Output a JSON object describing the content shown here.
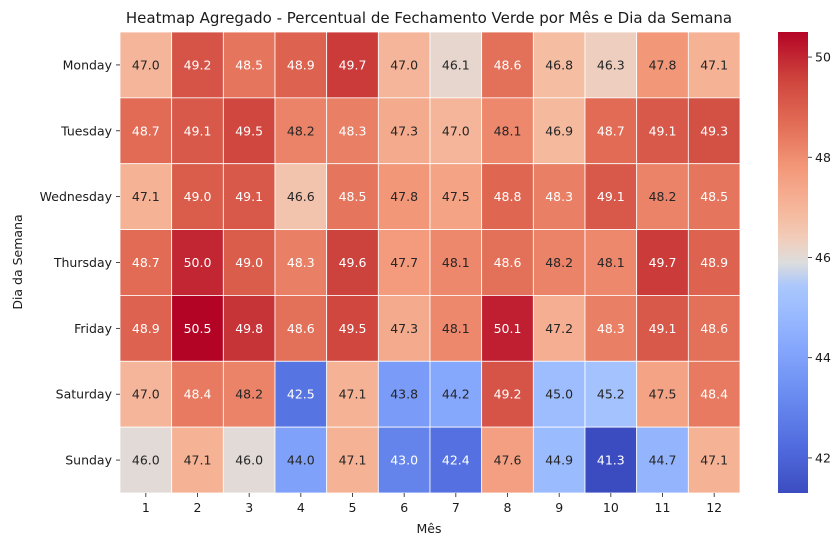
{
  "chart_data": {
    "type": "heatmap",
    "title": "Heatmap Agregado - Percentual de Fechamento Verde por Mês e Dia da Semana",
    "xlabel": "Mês",
    "ylabel": "Dia da Semana",
    "x_categories": [
      "1",
      "2",
      "3",
      "4",
      "5",
      "6",
      "7",
      "8",
      "9",
      "10",
      "11",
      "12"
    ],
    "y_categories": [
      "Monday",
      "Tuesday",
      "Wednesday",
      "Thursday",
      "Friday",
      "Saturday",
      "Sunday"
    ],
    "values": [
      [
        47.0,
        49.2,
        48.5,
        48.9,
        49.7,
        47.0,
        46.1,
        48.6,
        46.8,
        46.3,
        47.8,
        47.1
      ],
      [
        48.7,
        49.1,
        49.5,
        48.2,
        48.3,
        47.3,
        47.0,
        48.1,
        46.9,
        48.7,
        49.1,
        49.3
      ],
      [
        47.1,
        49.0,
        49.1,
        46.6,
        48.5,
        47.8,
        47.5,
        48.8,
        48.3,
        49.1,
        48.2,
        48.5
      ],
      [
        48.7,
        50.0,
        49.0,
        48.3,
        49.6,
        47.7,
        48.1,
        48.6,
        48.2,
        48.1,
        49.7,
        48.9
      ],
      [
        48.9,
        50.5,
        49.8,
        48.6,
        49.5,
        47.3,
        48.1,
        50.1,
        47.2,
        48.3,
        49.1,
        48.6
      ],
      [
        47.0,
        48.4,
        48.2,
        42.5,
        47.1,
        43.8,
        44.2,
        49.2,
        45.0,
        45.2,
        47.5,
        48.4
      ],
      [
        46.0,
        47.1,
        46.0,
        44.0,
        47.1,
        43.0,
        42.4,
        47.6,
        44.9,
        41.3,
        44.7,
        47.1
      ]
    ],
    "value_format": "0.1",
    "colormap": "coolwarm",
    "vmin": 41.3,
    "vmax": 50.5,
    "colorbar": {
      "ticks": [
        "42",
        "44",
        "46",
        "48",
        "50"
      ],
      "tick_values": [
        42,
        44,
        46,
        48,
        50
      ]
    },
    "grid": false
  }
}
